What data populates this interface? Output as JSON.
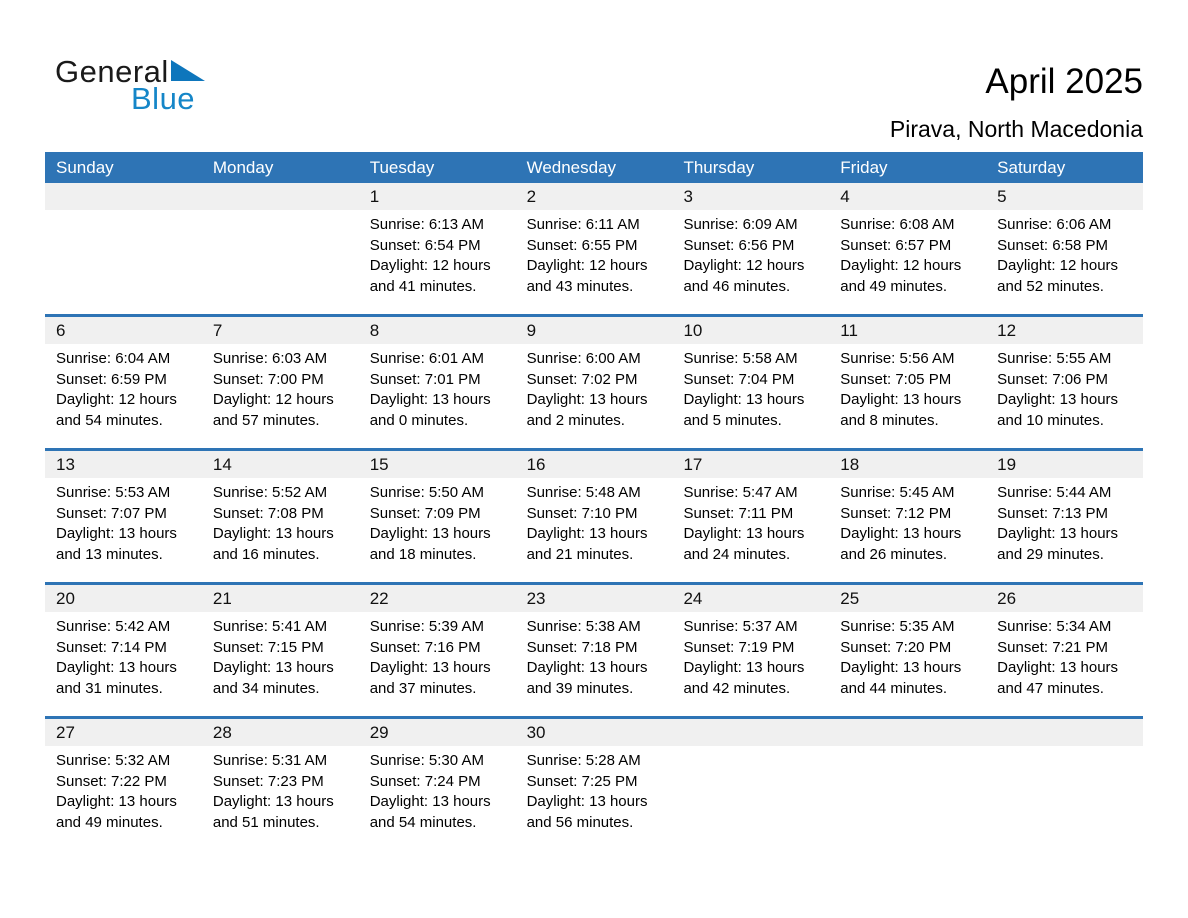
{
  "logo": {
    "part1": "General",
    "part2": "Blue"
  },
  "title": "April 2025",
  "subtitle": "Pirava, North Macedonia",
  "colors": {
    "header_blue": "#2E74B5",
    "strip_gray": "#F0F0F0",
    "logo_blue": "#1586C8",
    "triangle_blue": "#0E76BC"
  },
  "weekdays": [
    "Sunday",
    "Monday",
    "Tuesday",
    "Wednesday",
    "Thursday",
    "Friday",
    "Saturday"
  ],
  "weeks": [
    [
      {
        "date": "",
        "lines": []
      },
      {
        "date": "",
        "lines": []
      },
      {
        "date": "1",
        "lines": [
          "Sunrise: 6:13 AM",
          "Sunset: 6:54 PM",
          "Daylight: 12 hours",
          "and 41 minutes."
        ]
      },
      {
        "date": "2",
        "lines": [
          "Sunrise: 6:11 AM",
          "Sunset: 6:55 PM",
          "Daylight: 12 hours",
          "and 43 minutes."
        ]
      },
      {
        "date": "3",
        "lines": [
          "Sunrise: 6:09 AM",
          "Sunset: 6:56 PM",
          "Daylight: 12 hours",
          "and 46 minutes."
        ]
      },
      {
        "date": "4",
        "lines": [
          "Sunrise: 6:08 AM",
          "Sunset: 6:57 PM",
          "Daylight: 12 hours",
          "and 49 minutes."
        ]
      },
      {
        "date": "5",
        "lines": [
          "Sunrise: 6:06 AM",
          "Sunset: 6:58 PM",
          "Daylight: 12 hours",
          "and 52 minutes."
        ]
      }
    ],
    [
      {
        "date": "6",
        "lines": [
          "Sunrise: 6:04 AM",
          "Sunset: 6:59 PM",
          "Daylight: 12 hours",
          "and 54 minutes."
        ]
      },
      {
        "date": "7",
        "lines": [
          "Sunrise: 6:03 AM",
          "Sunset: 7:00 PM",
          "Daylight: 12 hours",
          "and 57 minutes."
        ]
      },
      {
        "date": "8",
        "lines": [
          "Sunrise: 6:01 AM",
          "Sunset: 7:01 PM",
          "Daylight: 13 hours",
          "and 0 minutes."
        ]
      },
      {
        "date": "9",
        "lines": [
          "Sunrise: 6:00 AM",
          "Sunset: 7:02 PM",
          "Daylight: 13 hours",
          "and 2 minutes."
        ]
      },
      {
        "date": "10",
        "lines": [
          "Sunrise: 5:58 AM",
          "Sunset: 7:04 PM",
          "Daylight: 13 hours",
          "and 5 minutes."
        ]
      },
      {
        "date": "11",
        "lines": [
          "Sunrise: 5:56 AM",
          "Sunset: 7:05 PM",
          "Daylight: 13 hours",
          "and 8 minutes."
        ]
      },
      {
        "date": "12",
        "lines": [
          "Sunrise: 5:55 AM",
          "Sunset: 7:06 PM",
          "Daylight: 13 hours",
          "and 10 minutes."
        ]
      }
    ],
    [
      {
        "date": "13",
        "lines": [
          "Sunrise: 5:53 AM",
          "Sunset: 7:07 PM",
          "Daylight: 13 hours",
          "and 13 minutes."
        ]
      },
      {
        "date": "14",
        "lines": [
          "Sunrise: 5:52 AM",
          "Sunset: 7:08 PM",
          "Daylight: 13 hours",
          "and 16 minutes."
        ]
      },
      {
        "date": "15",
        "lines": [
          "Sunrise: 5:50 AM",
          "Sunset: 7:09 PM",
          "Daylight: 13 hours",
          "and 18 minutes."
        ]
      },
      {
        "date": "16",
        "lines": [
          "Sunrise: 5:48 AM",
          "Sunset: 7:10 PM",
          "Daylight: 13 hours",
          "and 21 minutes."
        ]
      },
      {
        "date": "17",
        "lines": [
          "Sunrise: 5:47 AM",
          "Sunset: 7:11 PM",
          "Daylight: 13 hours",
          "and 24 minutes."
        ]
      },
      {
        "date": "18",
        "lines": [
          "Sunrise: 5:45 AM",
          "Sunset: 7:12 PM",
          "Daylight: 13 hours",
          "and 26 minutes."
        ]
      },
      {
        "date": "19",
        "lines": [
          "Sunrise: 5:44 AM",
          "Sunset: 7:13 PM",
          "Daylight: 13 hours",
          "and 29 minutes."
        ]
      }
    ],
    [
      {
        "date": "20",
        "lines": [
          "Sunrise: 5:42 AM",
          "Sunset: 7:14 PM",
          "Daylight: 13 hours",
          "and 31 minutes."
        ]
      },
      {
        "date": "21",
        "lines": [
          "Sunrise: 5:41 AM",
          "Sunset: 7:15 PM",
          "Daylight: 13 hours",
          "and 34 minutes."
        ]
      },
      {
        "date": "22",
        "lines": [
          "Sunrise: 5:39 AM",
          "Sunset: 7:16 PM",
          "Daylight: 13 hours",
          "and 37 minutes."
        ]
      },
      {
        "date": "23",
        "lines": [
          "Sunrise: 5:38 AM",
          "Sunset: 7:18 PM",
          "Daylight: 13 hours",
          "and 39 minutes."
        ]
      },
      {
        "date": "24",
        "lines": [
          "Sunrise: 5:37 AM",
          "Sunset: 7:19 PM",
          "Daylight: 13 hours",
          "and 42 minutes."
        ]
      },
      {
        "date": "25",
        "lines": [
          "Sunrise: 5:35 AM",
          "Sunset: 7:20 PM",
          "Daylight: 13 hours",
          "and 44 minutes."
        ]
      },
      {
        "date": "26",
        "lines": [
          "Sunrise: 5:34 AM",
          "Sunset: 7:21 PM",
          "Daylight: 13 hours",
          "and 47 minutes."
        ]
      }
    ],
    [
      {
        "date": "27",
        "lines": [
          "Sunrise: 5:32 AM",
          "Sunset: 7:22 PM",
          "Daylight: 13 hours",
          "and 49 minutes."
        ]
      },
      {
        "date": "28",
        "lines": [
          "Sunrise: 5:31 AM",
          "Sunset: 7:23 PM",
          "Daylight: 13 hours",
          "and 51 minutes."
        ]
      },
      {
        "date": "29",
        "lines": [
          "Sunrise: 5:30 AM",
          "Sunset: 7:24 PM",
          "Daylight: 13 hours",
          "and 54 minutes."
        ]
      },
      {
        "date": "30",
        "lines": [
          "Sunrise: 5:28 AM",
          "Sunset: 7:25 PM",
          "Daylight: 13 hours",
          "and 56 minutes."
        ]
      },
      {
        "date": "",
        "lines": []
      },
      {
        "date": "",
        "lines": []
      },
      {
        "date": "",
        "lines": []
      }
    ]
  ]
}
